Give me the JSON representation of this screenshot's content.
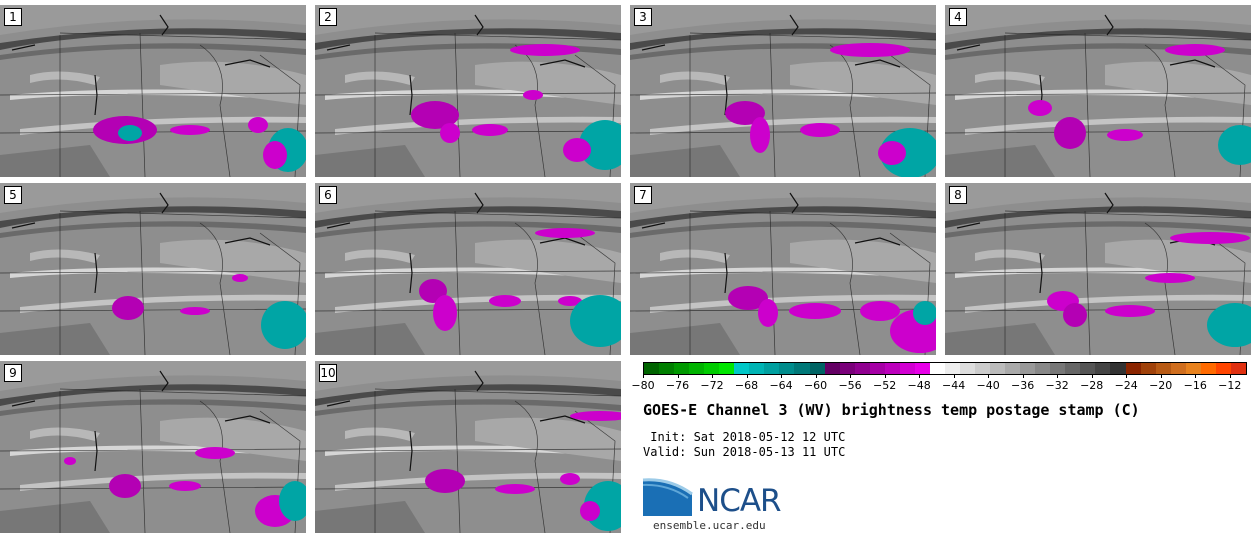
{
  "panels": [
    {
      "label": "1"
    },
    {
      "label": "2"
    },
    {
      "label": "3"
    },
    {
      "label": "4"
    },
    {
      "label": "5"
    },
    {
      "label": "6"
    },
    {
      "label": "7"
    },
    {
      "label": "8"
    },
    {
      "label": "9"
    },
    {
      "label": "10"
    }
  ],
  "colorbar": {
    "min": -80,
    "max": -10,
    "ticks": [
      "−80",
      "−76",
      "−72",
      "−68",
      "−64",
      "−60",
      "−56",
      "−52",
      "−48",
      "−44",
      "−40",
      "−36",
      "−32",
      "−28",
      "−24",
      "−20",
      "−16",
      "−12"
    ],
    "colors": [
      "#006400",
      "#007f00",
      "#009900",
      "#00b300",
      "#00cc00",
      "#00e600",
      "#00c8c8",
      "#00b4b4",
      "#00a0a0",
      "#008c8c",
      "#007878",
      "#006464",
      "#640064",
      "#7a007a",
      "#900090",
      "#a600a6",
      "#bc00bc",
      "#d200d2",
      "#e800e8",
      "#ffffff",
      "#eeeeee",
      "#dddddd",
      "#cccccc",
      "#bbbbbb",
      "#aaaaaa",
      "#999999",
      "#888888",
      "#777777",
      "#666666",
      "#555555",
      "#444444",
      "#333333",
      "#8b2500",
      "#a0420a",
      "#b85a14",
      "#d06e1e",
      "#e8821e",
      "#ff6a00",
      "#ff4500",
      "#e03010"
    ]
  },
  "title": "GOES-E Channel 3 (WV) brightness temp postage stamp (C)",
  "init": " Init: Sat 2018-05-12 12 UTC",
  "valid": "Valid: Sun 2018-05-13 11 UTC",
  "logo": {
    "word": "NCAR",
    "site": "ensemble.ucar.edu",
    "color": "#1d4f8a"
  }
}
